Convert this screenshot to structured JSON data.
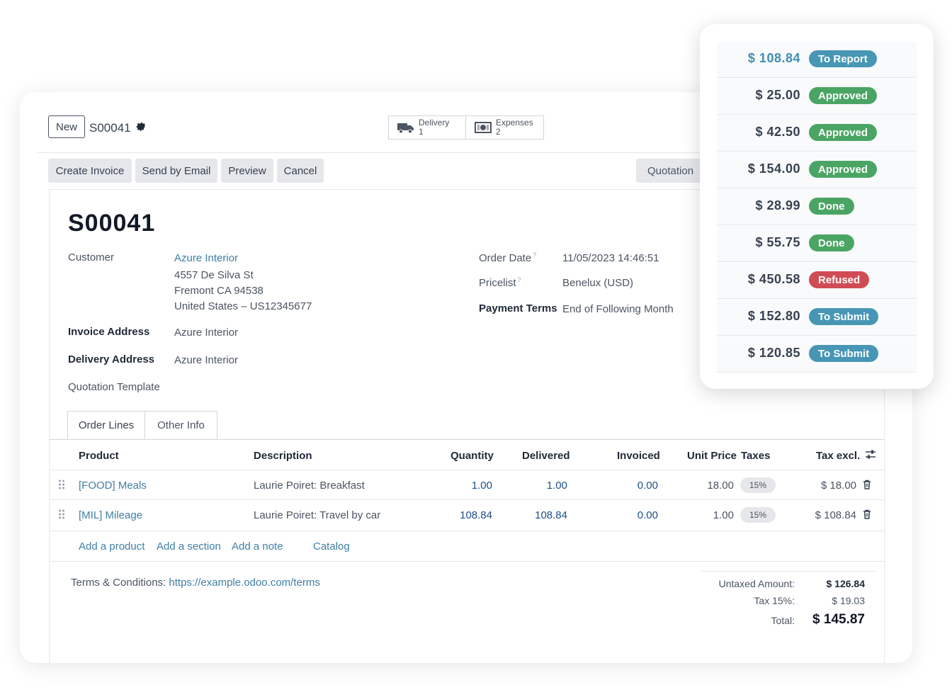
{
  "topbar": {
    "new_label": "New",
    "record_name": "S00041",
    "gear_icon": "gear-icon",
    "smart_buttons": [
      {
        "label": "Delivery",
        "count": "1",
        "icon": "truck-icon"
      },
      {
        "label": "Expenses",
        "count": "2",
        "icon": "money-icon"
      }
    ]
  },
  "actions": {
    "create_invoice": "Create Invoice",
    "send_by_email": "Send by Email",
    "preview": "Preview",
    "cancel": "Cancel",
    "status": "Quotation"
  },
  "form": {
    "title": "S00041",
    "customer_label": "Customer",
    "customer_name": "Azure Interior",
    "customer_address": [
      "4557 De Silva St",
      "Fremont CA 94538",
      "United States – US12345677"
    ],
    "invoice_address_label": "Invoice Address",
    "invoice_address": "Azure Interior",
    "delivery_address_label": "Delivery Address",
    "delivery_address": "Azure Interior",
    "quotation_template_label": "Quotation Template",
    "order_date_label": "Order Date",
    "order_date": "11/05/2023 14:46:51",
    "pricelist_label": "Pricelist",
    "pricelist": "Benelux (USD)",
    "payment_terms_label": "Payment Terms",
    "payment_terms": "End of Following Month",
    "help_mark": "?"
  },
  "tabs": [
    "Order Lines",
    "Other Info"
  ],
  "table": {
    "headers": {
      "product": "Product",
      "description": "Description",
      "quantity": "Quantity",
      "delivered": "Delivered",
      "invoiced": "Invoiced",
      "unit_price": "Unit Price",
      "taxes": "Taxes",
      "tax_excl": "Tax excl."
    },
    "rows": [
      {
        "product": "[FOOD] Meals",
        "description": "Laurie Poiret: Breakfast",
        "quantity": "1.00",
        "delivered": "1.00",
        "invoiced": "0.00",
        "unit_price": "18.00",
        "tax": "15%",
        "subtotal": "$ 18.00"
      },
      {
        "product": "[MIL] Mileage",
        "description": "Laurie Poiret: Travel by car",
        "quantity": "108.84",
        "delivered": "108.84",
        "invoiced": "0.00",
        "unit_price": "1.00",
        "tax": "15%",
        "subtotal": "$ 108.84"
      }
    ],
    "add_links": {
      "add_product": "Add a product",
      "add_section": "Add a section",
      "add_note": "Add a note",
      "catalog": "Catalog"
    }
  },
  "footer": {
    "terms_label": "Terms & Conditions:",
    "terms_url": "https://example.odoo.com/terms",
    "untaxed_label": "Untaxed Amount:",
    "untaxed_value": "$ 126.84",
    "tax_label": "Tax 15%:",
    "tax_value": "$ 19.03",
    "total_label": "Total:",
    "total_value": "$ 145.87"
  },
  "expenses_popup": [
    {
      "amount": "$ 108.84",
      "status": "To Report",
      "color": "#4796b5",
      "amount_color": "#3f8fb3"
    },
    {
      "amount": "$ 25.00",
      "status": "Approved",
      "color": "#4aa564"
    },
    {
      "amount": "$ 42.50",
      "status": "Approved",
      "color": "#4aa564"
    },
    {
      "amount": "$ 154.00",
      "status": "Approved",
      "color": "#4aa564"
    },
    {
      "amount": "$ 28.99",
      "status": "Done",
      "color": "#4aa564"
    },
    {
      "amount": "$ 55.75",
      "status": "Done",
      "color": "#4aa564"
    },
    {
      "amount": "$ 450.58",
      "status": "Refused",
      "color": "#d04c55"
    },
    {
      "amount": "$ 152.80",
      "status": "To Submit",
      "color": "#4796b5"
    },
    {
      "amount": "$ 120.85",
      "status": "To Submit",
      "color": "#4796b5"
    }
  ]
}
